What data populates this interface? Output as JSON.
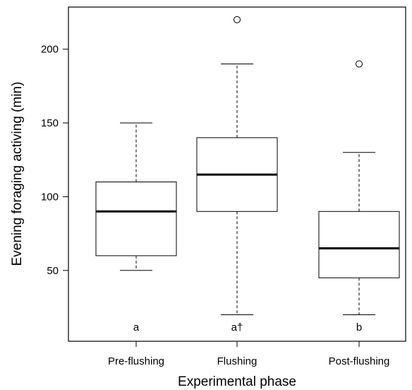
{
  "chart_data": {
    "type": "boxplot",
    "xlabel": "Experimental phase",
    "ylabel": "Evening foraging activing (min)",
    "ylim": [
      0,
      225
    ],
    "yticks": [
      50,
      100,
      150,
      200
    ],
    "grid": false,
    "categories": [
      "Pre-flushing",
      "Flushing",
      "Post-flushing"
    ],
    "boxes": [
      {
        "category": "Pre-flushing",
        "whisker_low": 50,
        "q1": 60,
        "median": 90,
        "q3": 110,
        "whisker_high": 150,
        "outliers": [],
        "letter": "a"
      },
      {
        "category": "Flushing",
        "whisker_low": 20,
        "q1": 90,
        "median": 115,
        "q3": 140,
        "whisker_high": 190,
        "outliers": [
          220
        ],
        "letter": "a†"
      },
      {
        "category": "Post-flushing",
        "whisker_low": 20,
        "q1": 45,
        "median": 65,
        "q3": 90,
        "whisker_high": 130,
        "outliers": [
          190
        ],
        "letter": "b"
      }
    ]
  }
}
